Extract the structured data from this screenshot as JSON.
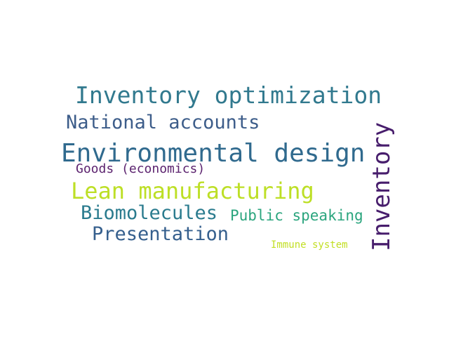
{
  "words": [
    {
      "text": "Inventory optimization",
      "color": "#31798e"
    },
    {
      "text": "National accounts",
      "color": "#3d5d8a"
    },
    {
      "text": "Environmental design",
      "color": "#306a8e"
    },
    {
      "text": "Goods (economics)",
      "color": "#5c236f"
    },
    {
      "text": "Lean manufacturing",
      "color": "#bddf26"
    },
    {
      "text": "Biomolecules",
      "color": "#2a7b8e"
    },
    {
      "text": "Public speaking",
      "color": "#2ba57e"
    },
    {
      "text": "Presentation",
      "color": "#355f8d"
    },
    {
      "text": "Immune system",
      "color": "#c2df23"
    },
    {
      "text": "Inventory",
      "color": "#471d6c"
    }
  ]
}
